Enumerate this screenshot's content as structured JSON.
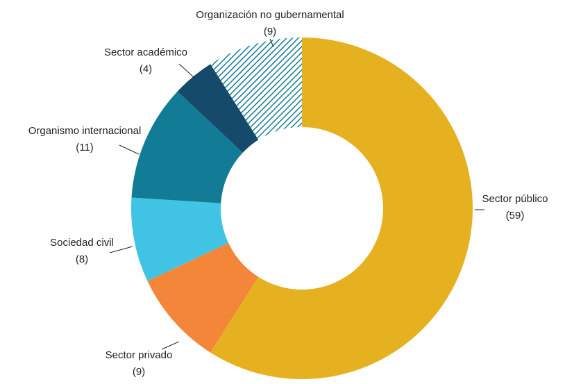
{
  "chart_data": {
    "type": "donut",
    "categories": [
      "Sector público",
      "Sector privado",
      "Sociedad civil",
      "Organismo internacional",
      "Sector académico",
      "Organización no gubernamental"
    ],
    "values": [
      59,
      9,
      8,
      11,
      4,
      9
    ],
    "value_labels": [
      "(59)",
      "(9)",
      "(8)",
      "(11)",
      "(4)",
      "(9)"
    ],
    "colors": [
      "#e6b120",
      "#f4863a",
      "#41c4e4",
      "#127b96",
      "#154a6b",
      "#127b96"
    ],
    "hatched": [
      false,
      false,
      false,
      false,
      false,
      true
    ]
  }
}
